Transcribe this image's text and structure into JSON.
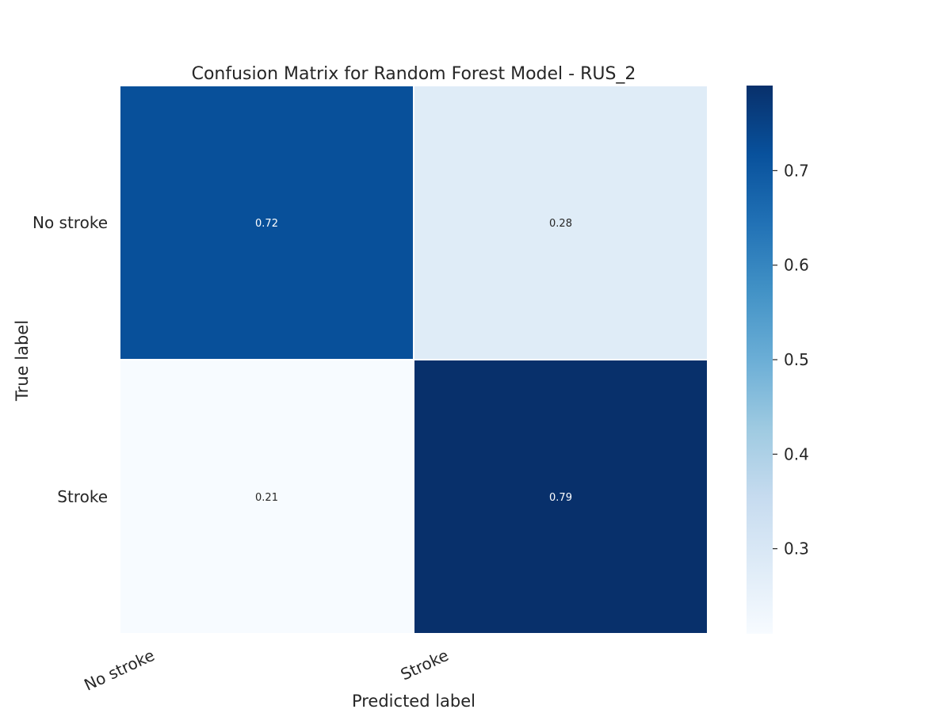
{
  "chart_data": {
    "type": "heatmap",
    "title": "Confusion Matrix for Random Forest Model - RUS_2",
    "xlabel": "Predicted label",
    "ylabel": "True label",
    "x_categories": [
      "No stroke",
      "Stroke"
    ],
    "y_categories": [
      "No stroke",
      "Stroke"
    ],
    "values": [
      [
        0.72,
        0.28
      ],
      [
        0.21,
        0.79
      ]
    ],
    "cell_labels": [
      [
        "0.72",
        "0.28"
      ],
      [
        "0.21",
        "0.79"
      ]
    ],
    "colormap": "Blues",
    "colorbar": {
      "range": [
        0.21,
        0.79
      ],
      "ticks": [
        0.3,
        0.4,
        0.5,
        0.6,
        0.7
      ],
      "tick_labels": [
        "0.3",
        "0.4",
        "0.5",
        "0.6",
        "0.7"
      ]
    },
    "colors": {
      "low": "#f7fbff",
      "high": "#08306b",
      "cell_text_dark": "#262626",
      "cell_text_light": "#ffffff"
    },
    "grid": false
  }
}
